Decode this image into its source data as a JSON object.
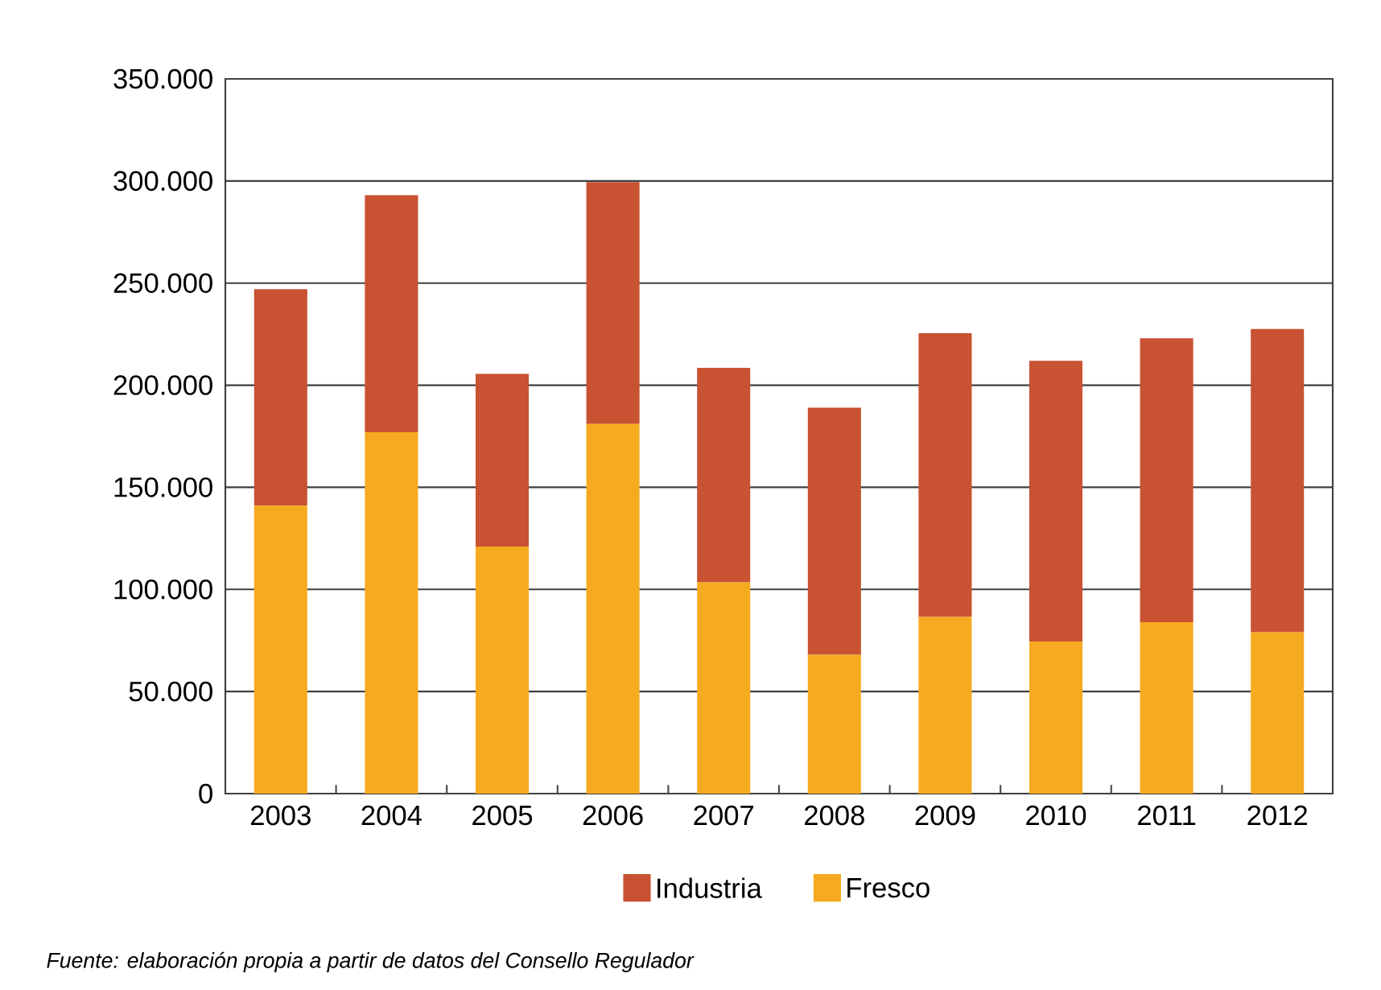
{
  "chart_data": {
    "type": "bar",
    "stacked": true,
    "categories": [
      "2003",
      "2004",
      "2005",
      "2006",
      "2007",
      "2008",
      "2009",
      "2010",
      "2011",
      "2012"
    ],
    "series": [
      {
        "name": "Fresco",
        "color": "#f6aa1f",
        "values": [
          141000,
          177000,
          121000,
          181000,
          103500,
          68000,
          86500,
          74500,
          84000,
          79000
        ]
      },
      {
        "name": "Industria",
        "color": "#c85232",
        "values": [
          106000,
          116000,
          84500,
          118500,
          105000,
          121000,
          139000,
          137500,
          139000,
          148500
        ]
      }
    ],
    "ylim": [
      0,
      350000
    ],
    "yticks": [
      0,
      {
        "value": 50000,
        "label": "50.000"
      },
      {
        "value": 100000,
        "label": "100.000"
      },
      {
        "value": 150000,
        "label": "150.000"
      },
      {
        "value": 200000,
        "label": "200.000"
      },
      {
        "value": 250000,
        "label": "250.000"
      },
      {
        "value": 300000,
        "label": "300.000"
      },
      {
        "value": 350000,
        "label": "350.000"
      }
    ],
    "grid": "y",
    "legend": "bottom",
    "annotations": [
      "Fuente: elaboración propia a partir de datos del Consello Regulador"
    ]
  }
}
